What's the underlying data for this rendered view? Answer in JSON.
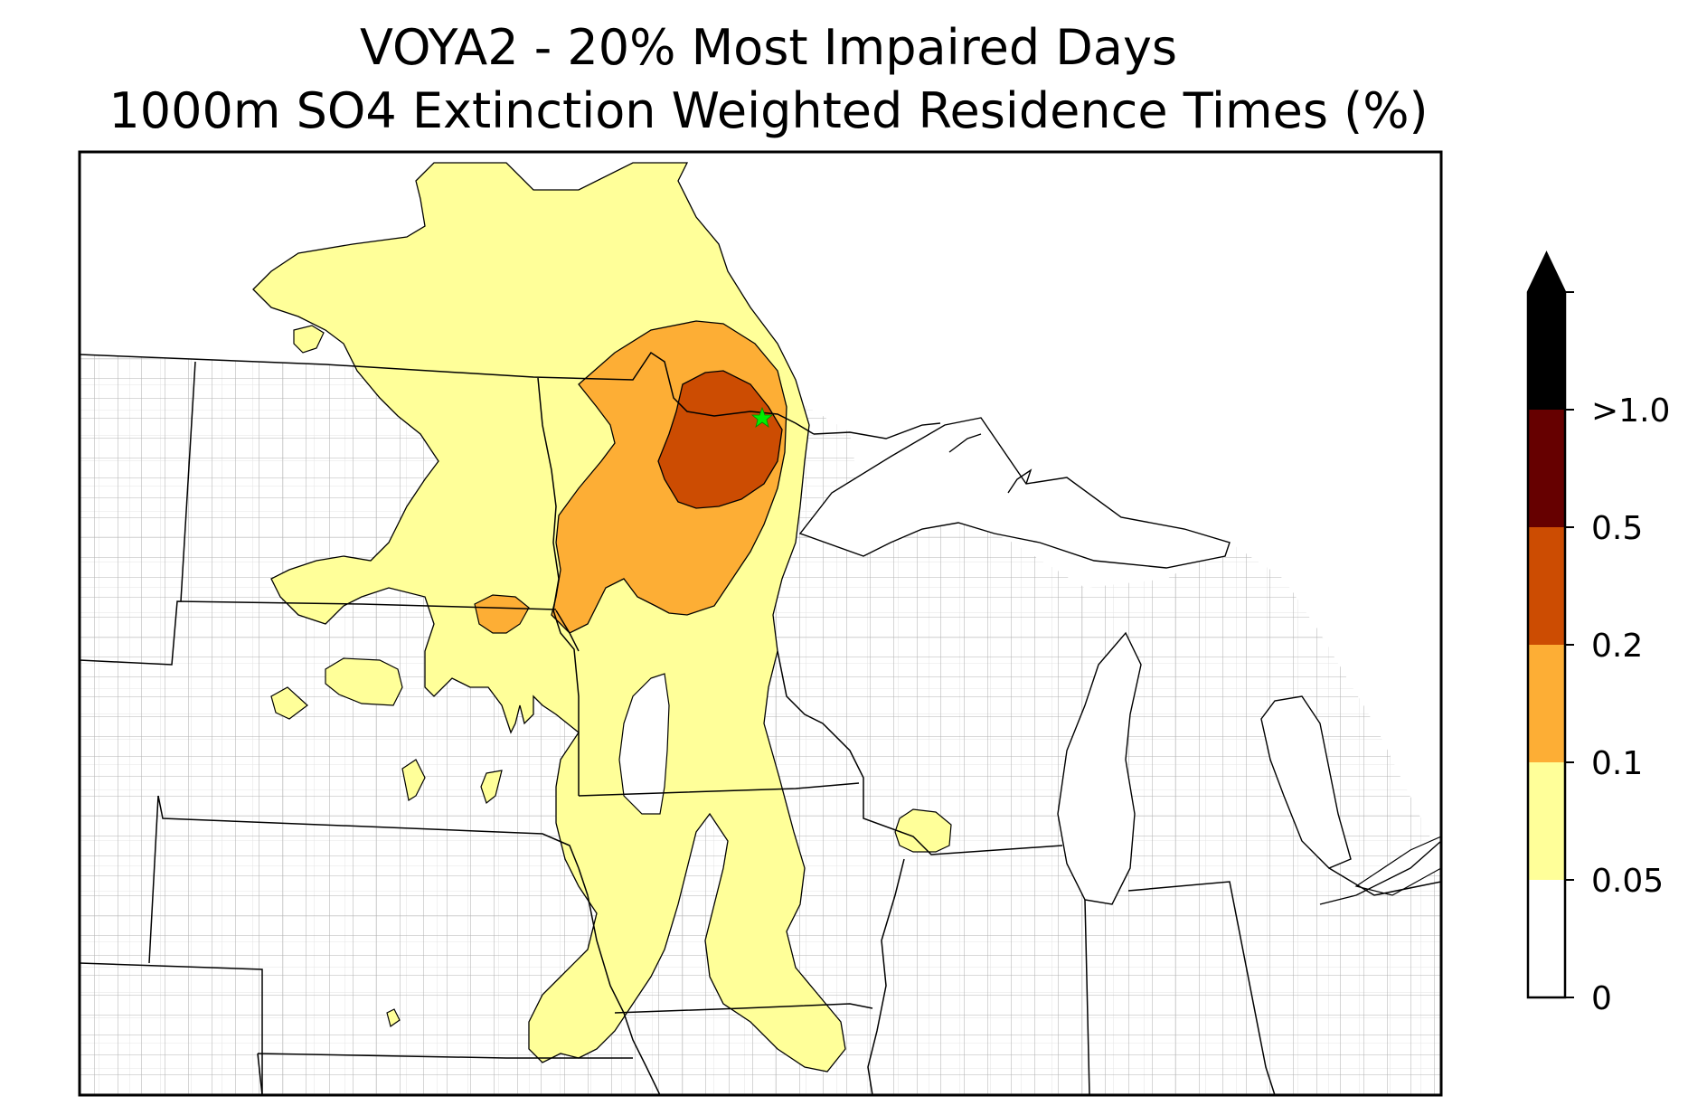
{
  "title": {
    "line1": "VOYA2 - 20% Most Impaired Days",
    "line2": "1000m SO4 Extinction Weighted Residence Times (%)"
  },
  "colorbar": {
    "levels": [
      {
        "label": "0",
        "value": 0,
        "color": "#ffffff"
      },
      {
        "label": "0.05",
        "value": 0.05,
        "color": "#ffff99"
      },
      {
        "label": "0.1",
        "value": 0.1,
        "color": "#fdae35"
      },
      {
        "label": "0.2",
        "value": 0.2,
        "color": "#cc4c02"
      },
      {
        "label": "0.5",
        "value": 0.5,
        "color": "#660000"
      },
      {
        "label": ">1.0",
        "value": 1.0,
        "color": "#000000"
      }
    ],
    "extend": "max"
  },
  "site_marker": {
    "name": "VOYA2",
    "color": "#00ee00",
    "icon": "star-icon"
  },
  "map": {
    "region": "Upper Midwest, USA",
    "state_border_color": "#000000",
    "county_border_color": "#aaaaaa",
    "contour_edge_color": "#000000"
  }
}
